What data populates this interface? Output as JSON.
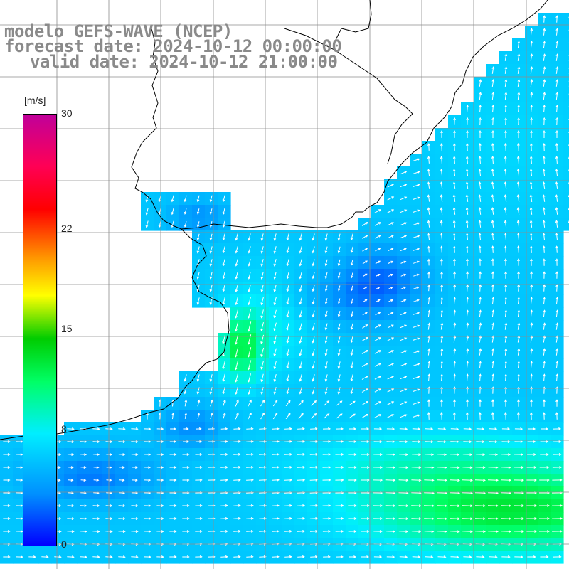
{
  "title": {
    "model": "modelo GEFS-WAVE (NCEP)",
    "forecast": "forecast date: 2024-10-12 00:00:00",
    "valid": "valid date: 2024-10-12 21:00:00"
  },
  "colorbar": {
    "unit": "[m/s]",
    "ticks": [
      {
        "label": "30",
        "value": 30
      },
      {
        "label": "22",
        "value": 22
      },
      {
        "label": "15",
        "value": 15
      },
      {
        "label": "8",
        "value": 8
      },
      {
        "label": "0",
        "value": 0
      }
    ],
    "range": [
      0,
      30
    ],
    "colors": [
      "#0000ff",
      "#0090ff",
      "#00eeff",
      "#00ff66",
      "#00cc00",
      "#ffff00",
      "#ffa000",
      "#ff0000",
      "#ff0055",
      "#c0009a"
    ]
  },
  "map": {
    "land_color": "#ffffff",
    "coast_color": "#000000",
    "grid_color": "#8c8c8c",
    "arrow_color": "#ffffff"
  }
}
